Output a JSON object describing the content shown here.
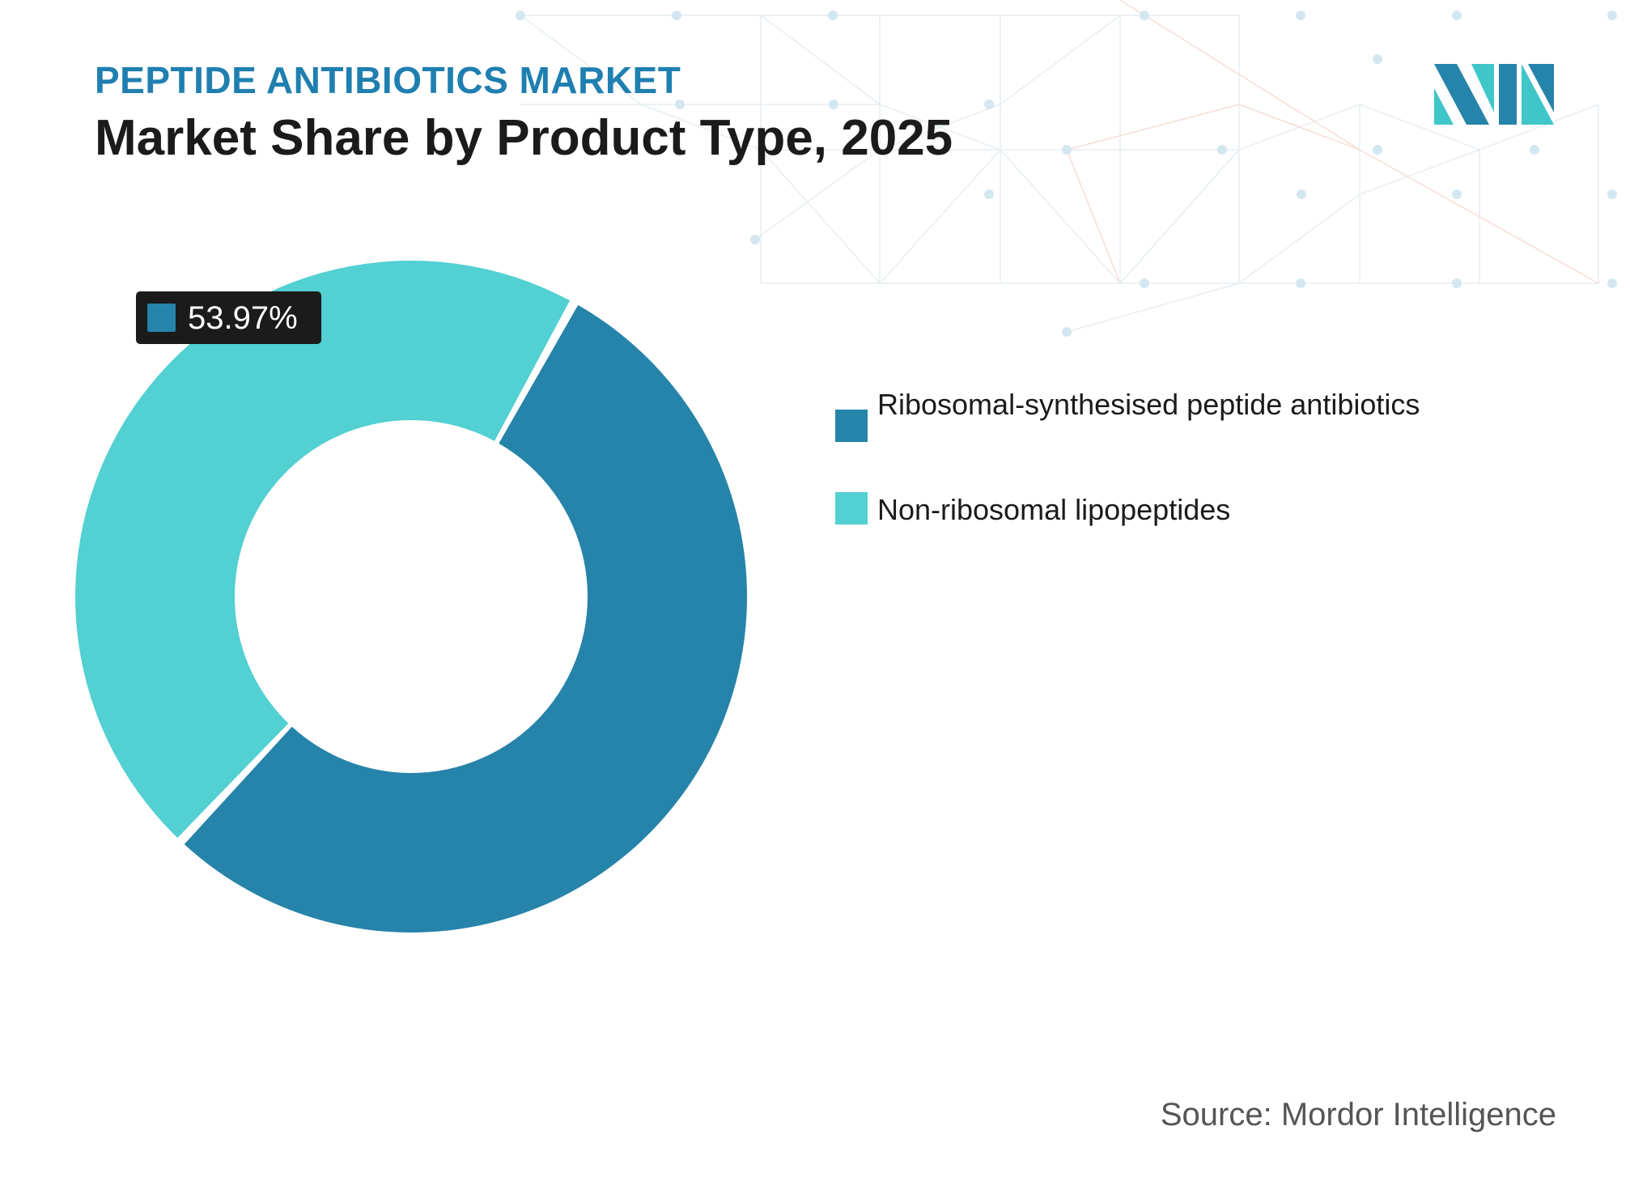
{
  "header": {
    "subtitle": "PEPTIDE ANTIBIOTICS MARKET",
    "title": "Market Share by Product Type, 2025"
  },
  "chart_data": {
    "type": "pie",
    "variant": "donut",
    "categories": [
      "Ribosomal-synthesised peptide antibiotics",
      "Non-ribosomal lipopeptides"
    ],
    "values": [
      53.97,
      46.03
    ],
    "colors": [
      "#2683a9",
      "#52d0d2"
    ],
    "data_labels": [
      {
        "series_index": 0,
        "text": "53.97%",
        "style": "dark-box-with-swatch"
      }
    ],
    "legend": {
      "position": "right"
    }
  },
  "source": "Source: Mordor Intelligence",
  "logo": {
    "icon": "mordor-intelligence-logo",
    "colors": [
      "#2683a9",
      "#3fc6c9"
    ]
  }
}
